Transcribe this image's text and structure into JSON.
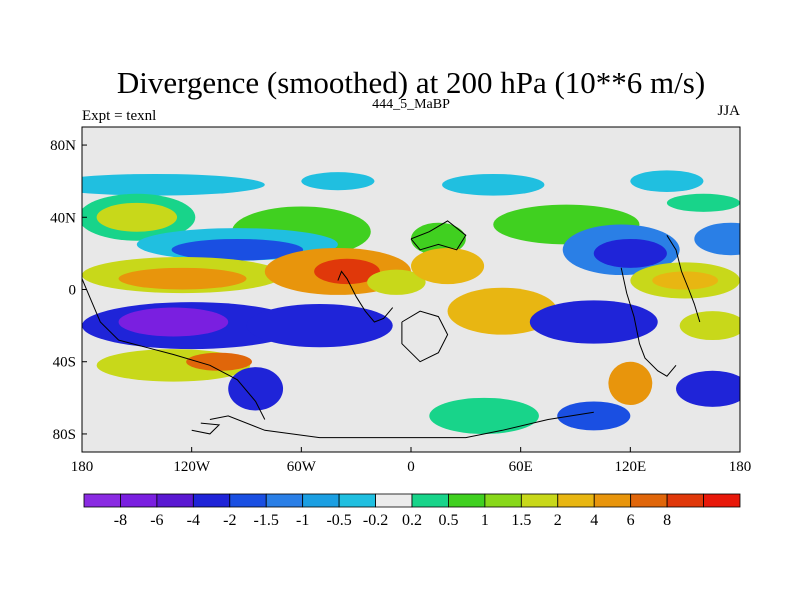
{
  "chart_data": {
    "type": "heatmap",
    "title": "Divergence (smoothed) at 200 hPa (10**6 m/s)",
    "subtitle_left": "Expt = texnl",
    "subtitle_center": "444_5_MaBP",
    "subtitle_right": "JJA",
    "xlim": [
      -180,
      180
    ],
    "ylim": [
      -90,
      90
    ],
    "x_ticks": [
      {
        "value": -180,
        "label": "180"
      },
      {
        "value": -120,
        "label": "120W"
      },
      {
        "value": -60,
        "label": "60W"
      },
      {
        "value": 0,
        "label": "0"
      },
      {
        "value": 60,
        "label": "60E"
      },
      {
        "value": 120,
        "label": "120E"
      },
      {
        "value": 180,
        "label": "180"
      }
    ],
    "y_ticks": [
      {
        "value": 80,
        "label": "80N"
      },
      {
        "value": 40,
        "label": "40N"
      },
      {
        "value": 0,
        "label": "0"
      },
      {
        "value": -40,
        "label": "40S"
      },
      {
        "value": -80,
        "label": "80S"
      }
    ],
    "colorbar": {
      "colors": [
        "#8a2be2",
        "#7a1fe0",
        "#5a18d2",
        "#1f24d8",
        "#1a4fe2",
        "#2a7fe6",
        "#1b9fe2",
        "#20bfe0",
        "#ececec",
        "#18d48a",
        "#40d020",
        "#88d81a",
        "#c8d81a",
        "#e8b612",
        "#e8950c",
        "#e0660a",
        "#e0380a",
        "#e8180a"
      ],
      "labels": [
        "-8",
        "-6",
        "-4",
        "-2",
        "-1.5",
        "-1",
        "-0.5",
        "-0.2",
        "0.2",
        "0.5",
        "1",
        "1.5",
        "2",
        "4",
        "6",
        "8"
      ]
    },
    "background_color": "#e8e8e8",
    "contour_blobs": [
      {
        "lon": -140,
        "lat": 58,
        "rx": 60,
        "ry": 6,
        "level": 7
      },
      {
        "lon": -40,
        "lat": 60,
        "rx": 20,
        "ry": 5,
        "level": 7
      },
      {
        "lon": 45,
        "lat": 58,
        "rx": 28,
        "ry": 6,
        "level": 7
      },
      {
        "lon": 140,
        "lat": 60,
        "rx": 20,
        "ry": 6,
        "level": 7
      },
      {
        "lon": 160,
        "lat": 48,
        "rx": 20,
        "ry": 5,
        "level": 9
      },
      {
        "lon": -150,
        "lat": 40,
        "rx": 32,
        "ry": 13,
        "level": 9
      },
      {
        "lon": -150,
        "lat": 40,
        "rx": 22,
        "ry": 8,
        "level": 12
      },
      {
        "lon": -60,
        "lat": 32,
        "rx": 38,
        "ry": 14,
        "level": 10
      },
      {
        "lon": 15,
        "lat": 28,
        "rx": 15,
        "ry": 9,
        "level": 10
      },
      {
        "lon": 85,
        "lat": 36,
        "rx": 40,
        "ry": 11,
        "level": 10
      },
      {
        "lon": -95,
        "lat": 25,
        "rx": 55,
        "ry": 9,
        "level": 7
      },
      {
        "lon": -95,
        "lat": 22,
        "rx": 36,
        "ry": 6,
        "level": 4
      },
      {
        "lon": 115,
        "lat": 22,
        "rx": 32,
        "ry": 14,
        "level": 5
      },
      {
        "lon": 120,
        "lat": 20,
        "rx": 20,
        "ry": 8,
        "level": 3
      },
      {
        "lon": 175,
        "lat": 28,
        "rx": 20,
        "ry": 9,
        "level": 5
      },
      {
        "lon": -125,
        "lat": 8,
        "rx": 55,
        "ry": 10,
        "level": 12
      },
      {
        "lon": -125,
        "lat": 6,
        "rx": 35,
        "ry": 6,
        "level": 14
      },
      {
        "lon": -40,
        "lat": 10,
        "rx": 40,
        "ry": 13,
        "level": 14
      },
      {
        "lon": -35,
        "lat": 10,
        "rx": 18,
        "ry": 7,
        "level": 16
      },
      {
        "lon": -8,
        "lat": 4,
        "rx": 16,
        "ry": 7,
        "level": 12
      },
      {
        "lon": 20,
        "lat": 13,
        "rx": 20,
        "ry": 10,
        "level": 13
      },
      {
        "lon": 150,
        "lat": 5,
        "rx": 30,
        "ry": 10,
        "level": 12
      },
      {
        "lon": 150,
        "lat": 5,
        "rx": 18,
        "ry": 5,
        "level": 13
      },
      {
        "lon": -120,
        "lat": -20,
        "rx": 60,
        "ry": 13,
        "level": 3
      },
      {
        "lon": -130,
        "lat": -18,
        "rx": 30,
        "ry": 8,
        "level": 1
      },
      {
        "lon": -50,
        "lat": -20,
        "rx": 40,
        "ry": 12,
        "level": 3
      },
      {
        "lon": 50,
        "lat": -12,
        "rx": 30,
        "ry": 13,
        "level": 13
      },
      {
        "lon": 100,
        "lat": -18,
        "rx": 35,
        "ry": 12,
        "level": 3
      },
      {
        "lon": 165,
        "lat": -20,
        "rx": 18,
        "ry": 8,
        "level": 12
      },
      {
        "lon": -130,
        "lat": -42,
        "rx": 42,
        "ry": 9,
        "level": 12
      },
      {
        "lon": -105,
        "lat": -40,
        "rx": 18,
        "ry": 5,
        "level": 15
      },
      {
        "lon": 120,
        "lat": -52,
        "rx": 12,
        "ry": 12,
        "level": 14
      },
      {
        "lon": -85,
        "lat": -55,
        "rx": 15,
        "ry": 12,
        "level": 3
      },
      {
        "lon": 165,
        "lat": -55,
        "rx": 20,
        "ry": 10,
        "level": 3
      },
      {
        "lon": 40,
        "lat": -70,
        "rx": 30,
        "ry": 10,
        "level": 9
      },
      {
        "lon": 100,
        "lat": -70,
        "rx": 20,
        "ry": 8,
        "level": 4
      }
    ]
  }
}
